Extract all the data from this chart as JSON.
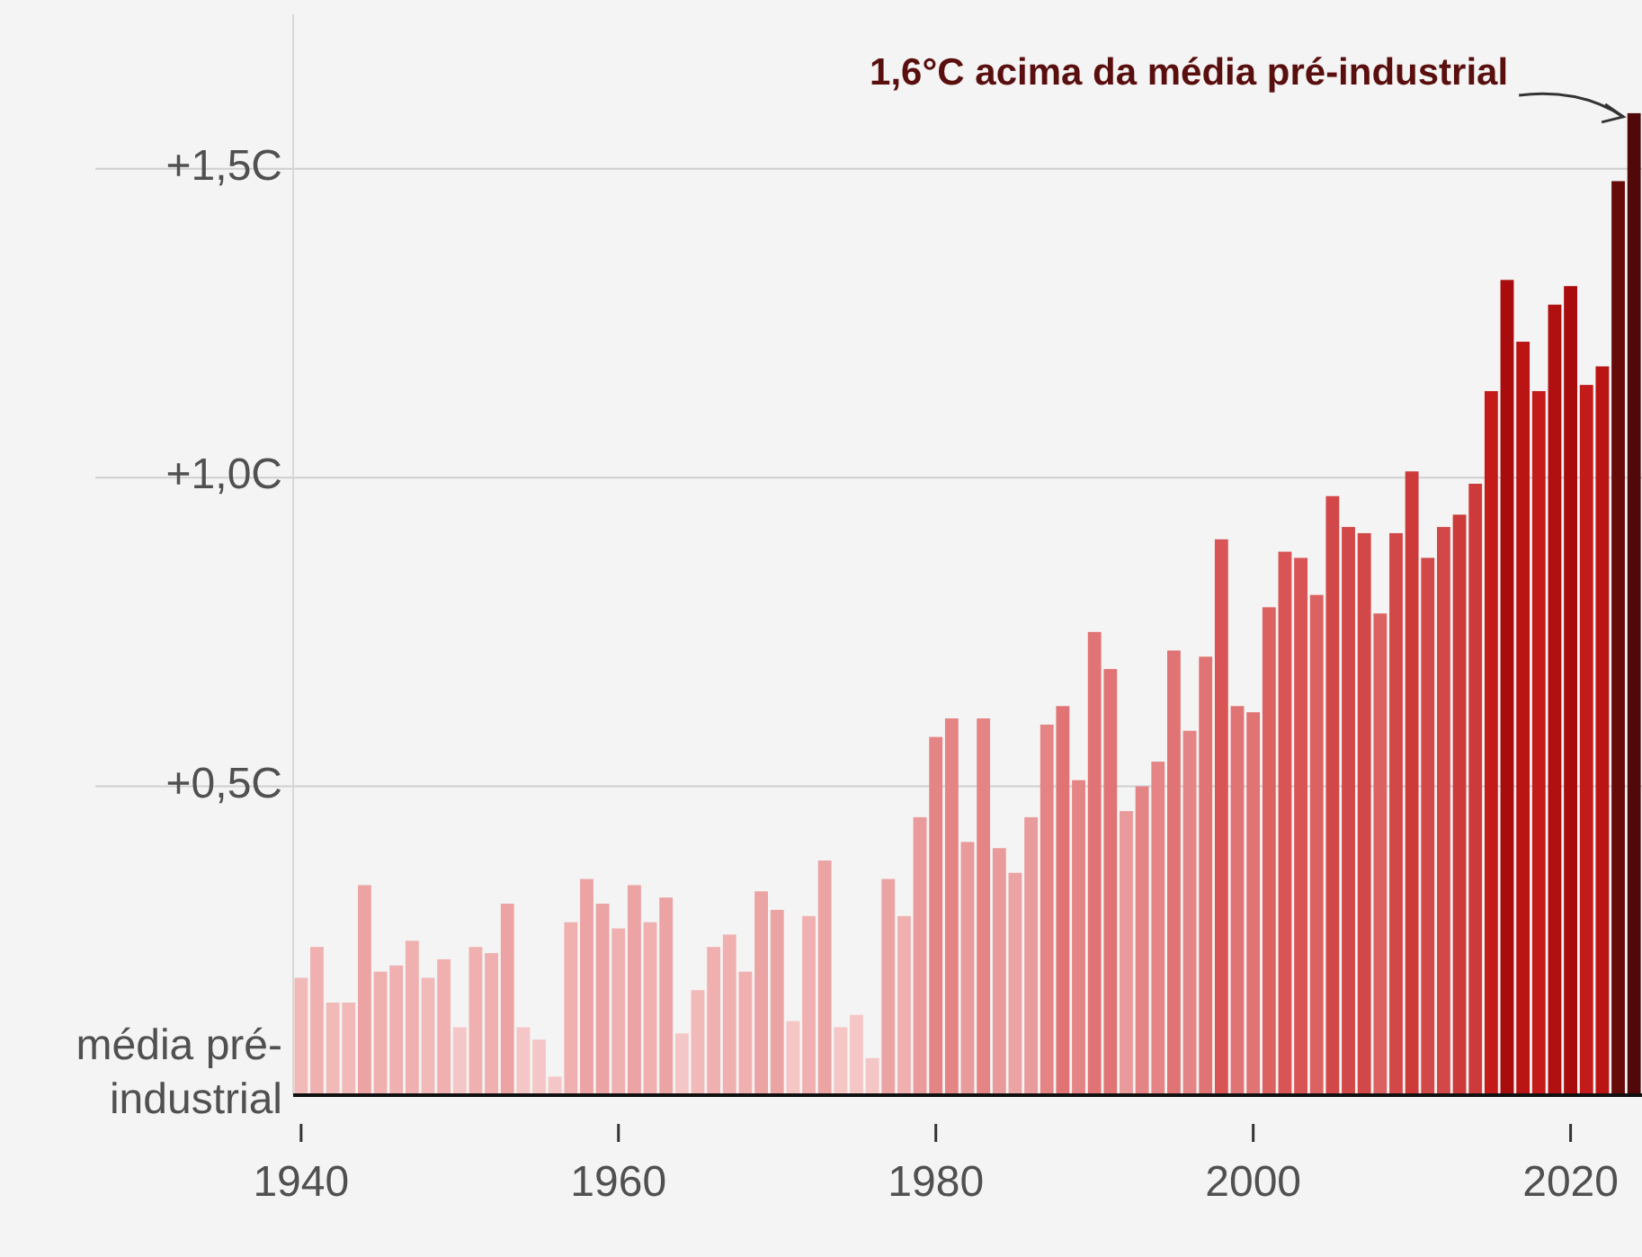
{
  "chart_data": {
    "type": "bar",
    "x": [
      1940,
      1941,
      1942,
      1943,
      1944,
      1945,
      1946,
      1947,
      1948,
      1949,
      1950,
      1951,
      1952,
      1953,
      1954,
      1955,
      1956,
      1957,
      1958,
      1959,
      1960,
      1961,
      1962,
      1963,
      1964,
      1965,
      1966,
      1967,
      1968,
      1969,
      1970,
      1971,
      1972,
      1973,
      1974,
      1975,
      1976,
      1977,
      1978,
      1979,
      1980,
      1981,
      1982,
      1983,
      1984,
      1985,
      1986,
      1987,
      1988,
      1989,
      1990,
      1991,
      1992,
      1993,
      1994,
      1995,
      1996,
      1997,
      1998,
      1999,
      2000,
      2001,
      2002,
      2003,
      2004,
      2005,
      2006,
      2007,
      2008,
      2009,
      2010,
      2011,
      2012,
      2013,
      2014,
      2015,
      2016,
      2017,
      2018,
      2019,
      2020,
      2021,
      2022,
      2023,
      2024
    ],
    "values": [
      0.19,
      0.24,
      0.15,
      0.15,
      0.34,
      0.2,
      0.21,
      0.25,
      0.19,
      0.22,
      0.11,
      0.24,
      0.23,
      0.31,
      0.11,
      0.09,
      0.03,
      0.28,
      0.35,
      0.31,
      0.27,
      0.34,
      0.28,
      0.32,
      0.1,
      0.17,
      0.24,
      0.26,
      0.2,
      0.33,
      0.3,
      0.12,
      0.29,
      0.38,
      0.11,
      0.13,
      0.06,
      0.35,
      0.29,
      0.45,
      0.58,
      0.61,
      0.41,
      0.61,
      0.4,
      0.36,
      0.45,
      0.6,
      0.63,
      0.51,
      0.75,
      0.69,
      0.46,
      0.5,
      0.54,
      0.72,
      0.59,
      0.71,
      0.9,
      0.63,
      0.62,
      0.79,
      0.88,
      0.87,
      0.81,
      0.97,
      0.92,
      0.91,
      0.78,
      0.91,
      1.01,
      0.87,
      0.92,
      0.94,
      0.99,
      1.14,
      1.32,
      1.22,
      1.14,
      1.28,
      1.31,
      1.15,
      1.18,
      1.48,
      1.59
    ],
    "colors": [
      "#f2b9b9",
      "#f0b0b0",
      "#f2b9b9",
      "#f2b9b9",
      "#eba3a3",
      "#f0b0b0",
      "#f0b0b0",
      "#f0b0b0",
      "#f2b9b9",
      "#f0b0b0",
      "#f5c6c6",
      "#f0b0b0",
      "#f0b0b0",
      "#eba3a3",
      "#f5c6c6",
      "#f5c6c6",
      "#f5c6c6",
      "#f0b0b0",
      "#eba3a3",
      "#eba3a3",
      "#f0b0b0",
      "#eba3a3",
      "#f0b0b0",
      "#eba3a3",
      "#f5c6c6",
      "#f2b9b9",
      "#f0b0b0",
      "#f0b0b0",
      "#f0b0b0",
      "#eba3a3",
      "#eba3a3",
      "#f5c6c6",
      "#f0b0b0",
      "#eba3a3",
      "#f5c6c6",
      "#f5c6c6",
      "#f5c6c6",
      "#eba3a3",
      "#f0b0b0",
      "#e99a9a",
      "#e48484",
      "#e48484",
      "#e99a9a",
      "#e48484",
      "#e99a9a",
      "#eba3a3",
      "#e99a9a",
      "#e48484",
      "#e07474",
      "#e48484",
      "#e07474",
      "#e07474",
      "#e99a9a",
      "#e48484",
      "#e48484",
      "#e07474",
      "#e48484",
      "#e07474",
      "#d95454",
      "#e07474",
      "#e07474",
      "#dc6262",
      "#d95454",
      "#d95454",
      "#dc6262",
      "#d24848",
      "#d24848",
      "#d24848",
      "#dc6262",
      "#d24848",
      "#cc3a3a",
      "#d24848",
      "#d24848",
      "#cc3a3a",
      "#cc3a3a",
      "#c41a1a",
      "#a80c0c",
      "#bb1414",
      "#c41a1a",
      "#b01010",
      "#a80c0c",
      "#c41a1a",
      "#bb1414",
      "#660a0a",
      "#500808"
    ],
    "xlim": [
      1939.5,
      2024.5
    ],
    "xticks": [
      1940,
      1960,
      1980,
      2000,
      2020
    ],
    "ylim": [
      0,
      1.75
    ],
    "yticks": [
      {
        "value": 0,
        "label": "média pré-industrial"
      },
      {
        "value": 0.5,
        "label": "+0,5C"
      },
      {
        "value": 1,
        "label": "+1,0C"
      },
      {
        "value": 1.5,
        "label": "+1,5C"
      }
    ],
    "grid": "y",
    "annotations": [
      {
        "text": "1,6°C acima da média pré-industrial",
        "x": 2024,
        "y": 1.59
      }
    ]
  }
}
